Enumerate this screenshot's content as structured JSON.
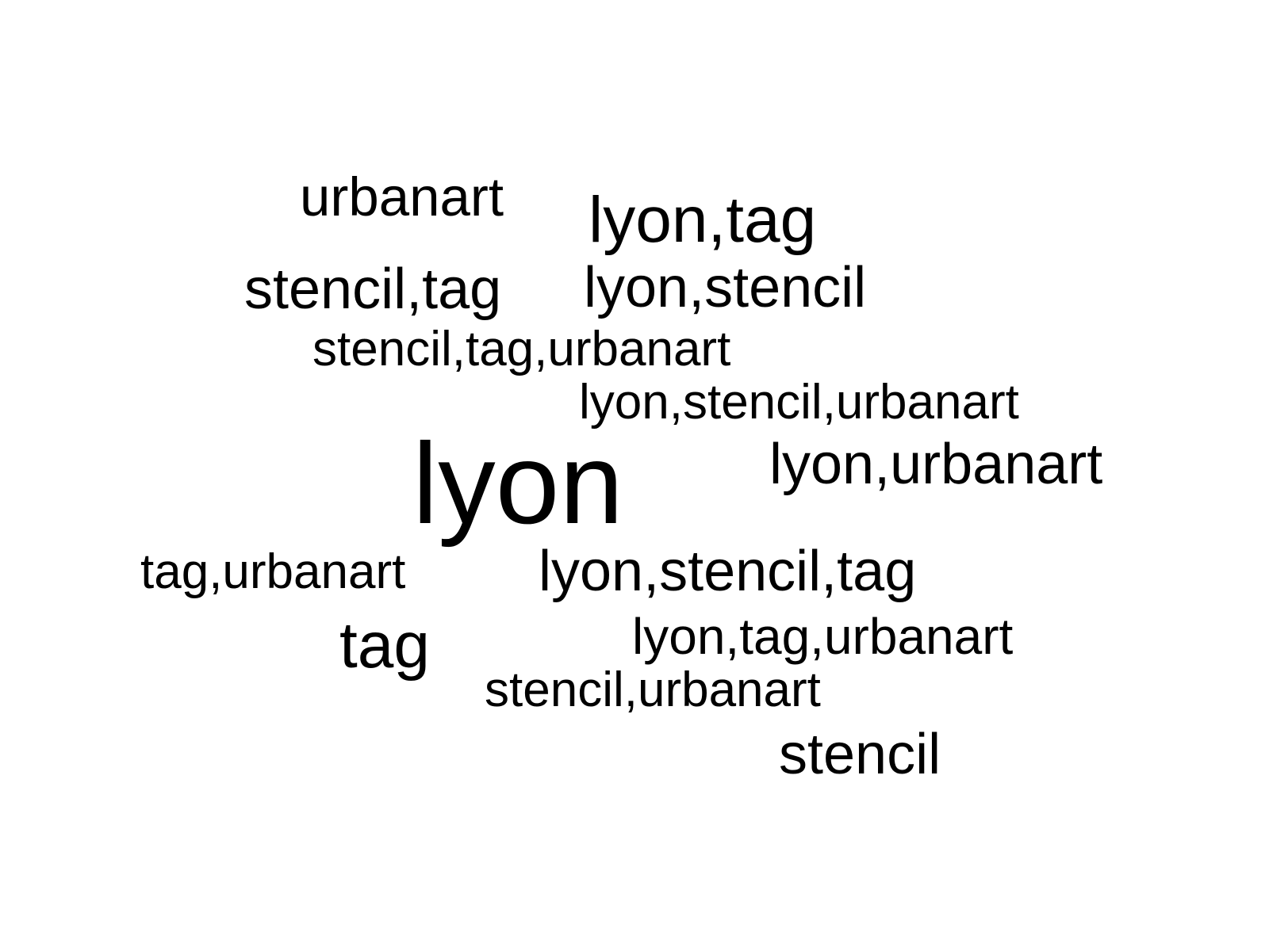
{
  "chart_data": {
    "type": "wordcloud",
    "text_color": "#000000",
    "background": "#ffffff",
    "words": [
      {
        "text": "urbanart"
      },
      {
        "text": "lyon,tag"
      },
      {
        "text": "stencil,tag"
      },
      {
        "text": "lyon,stencil"
      },
      {
        "text": "stencil,tag,urbanart"
      },
      {
        "text": "lyon,stencil,urbanart"
      },
      {
        "text": "lyon"
      },
      {
        "text": "lyon,urbanart"
      },
      {
        "text": "tag,urbanart"
      },
      {
        "text": "lyon,stencil,tag"
      },
      {
        "text": "tag"
      },
      {
        "text": "lyon,tag,urbanart"
      },
      {
        "text": "stencil,urbanart"
      },
      {
        "text": "stencil"
      }
    ]
  }
}
